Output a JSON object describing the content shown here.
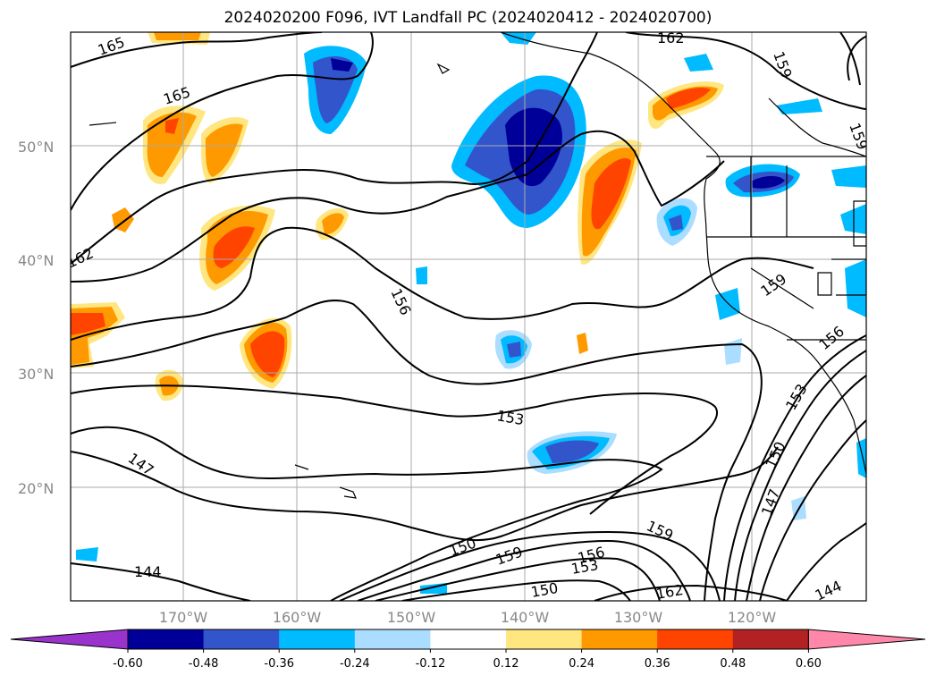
{
  "title": "2024020200 F096, IVT Landfall PC (2024020412 - 2024020700)",
  "lat_labels": [
    "50°N",
    "40°N",
    "30°N",
    "20°N"
  ],
  "lon_labels": [
    "170°W",
    "160°W",
    "150°W",
    "140°W",
    "130°W",
    "120°W"
  ],
  "contour_labels": [
    "165",
    "165",
    "162",
    "162",
    "159",
    "159",
    "156",
    "159",
    "156",
    "153",
    "153",
    "150",
    "147",
    "147",
    "144",
    "150",
    "159",
    "156",
    "153",
    "150",
    "159",
    "162",
    "144"
  ],
  "colorbar": {
    "ticks": [
      "-0.60",
      "-0.48",
      "-0.36",
      "-0.24",
      "-0.12",
      "0.12",
      "0.24",
      "0.36",
      "0.48",
      "0.60"
    ],
    "colors": [
      "#9933cc",
      "#000099",
      "#3355cc",
      "#00bbff",
      "#aaddff",
      "#ffffff",
      "#ffe680",
      "#ff9900",
      "#ff4400",
      "#b22222",
      "#ff88aa"
    ]
  }
}
